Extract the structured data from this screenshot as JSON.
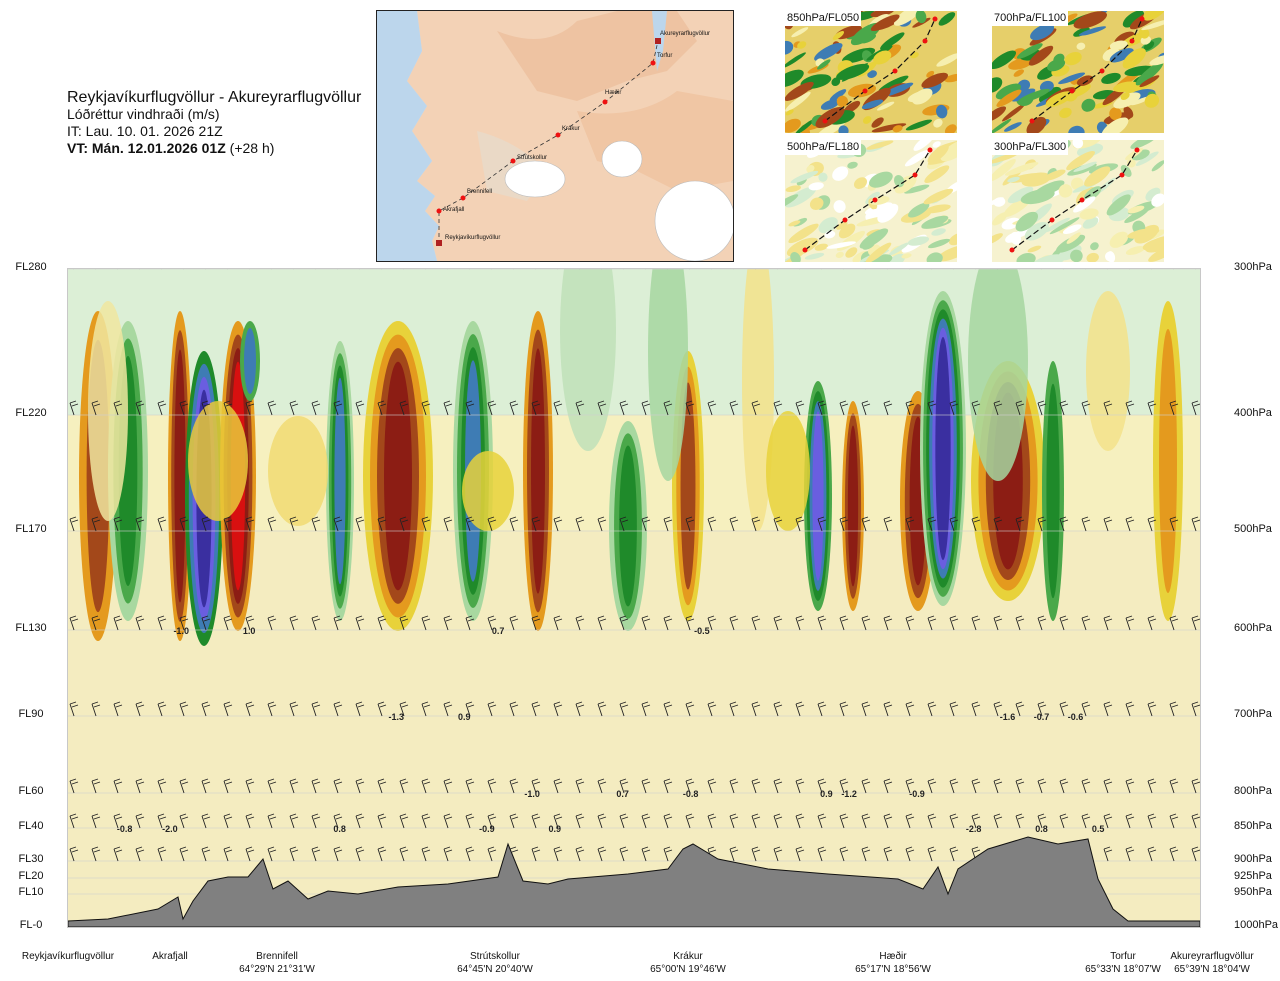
{
  "header": {
    "route": "Reykjavíkurflugvöllur - Akureyrarflugvöllur",
    "variable": "Lóðréttur vindhraði (m/s)",
    "issue_time": "IT: Lau. 10. 01. 2026 21Z",
    "valid_time_bold": "VT: Mán. 12.01.2026 01Z",
    "valid_time_offset": "(+28 h)"
  },
  "route_map": {
    "waypoints": [
      {
        "name": "Reykjavíkurflugvöllur"
      },
      {
        "name": "Akrafjall"
      },
      {
        "name": "Brennifell"
      },
      {
        "name": "Strútskollur"
      },
      {
        "name": "Krákur"
      },
      {
        "name": "Hæðir"
      },
      {
        "name": "Torfur"
      },
      {
        "name": "Akureyrarflugvöllur"
      }
    ]
  },
  "thumbnails": [
    {
      "label": "850hPa/FL050"
    },
    {
      "label": "700hPa/FL100"
    },
    {
      "label": "500hPa/FL180"
    },
    {
      "label": "300hPa/FL300"
    }
  ],
  "colors": {
    "strong_up": "#3a2fa0",
    "up": "#6a5ee0",
    "mid_blue": "#3e7cb4",
    "green_dark": "#1f8a2a",
    "green": "#4aa84a",
    "green_light": "#a8d8a0",
    "green_pale": "#d4ecd0",
    "yellow_pale": "#f6efb0",
    "yellow": "#e8d23a",
    "orange": "#e49a1e",
    "brown": "#a3481a",
    "dark_red": "#8c1d14",
    "red": "#d81010",
    "terrain": "#808080"
  },
  "chart_data": {
    "type": "heatmap",
    "title": "Lóðréttur vindhraði (m/s)",
    "xlabel": "",
    "ylabel": "",
    "y_flight_levels": [
      "FL280",
      "FL220",
      "FL170",
      "FL130",
      "FL90",
      "FL60",
      "FL40",
      "FL30",
      "FL20",
      "FL10",
      "FL-0"
    ],
    "y_pressure_levels": [
      "300hPa",
      "400hPa",
      "500hPa",
      "600hPa",
      "700hPa",
      "800hPa",
      "850hPa",
      "900hPa",
      "925hPa",
      "950hPa",
      "1000hPa"
    ],
    "x_locations": [
      {
        "name": "Reykjavíkurflugvöllur",
        "coord": ""
      },
      {
        "name": "Akrafjall",
        "coord": ""
      },
      {
        "name": "Brennifell",
        "coord": "64°29'N 21°31'W"
      },
      {
        "name": "Strútskollur",
        "coord": "64°45'N 20°40'W"
      },
      {
        "name": "Krákur",
        "coord": "65°00'N 19°46'W"
      },
      {
        "name": "Hæðir",
        "coord": "65°17'N 18°56'W"
      },
      {
        "name": "Torfur",
        "coord": "65°33'N 18°07'W"
      },
      {
        "name": "Akureyrarflugvöllur",
        "coord": "65°39'N 18°04'W"
      }
    ],
    "value_labels": [
      {
        "text": "-1.0",
        "x": 0.1,
        "level": "600hPa"
      },
      {
        "text": "1.0",
        "x": 0.16,
        "level": "600hPa"
      },
      {
        "text": "0.7",
        "x": 0.38,
        "level": "600hPa"
      },
      {
        "text": "-0.5",
        "x": 0.56,
        "level": "600hPa"
      },
      {
        "text": "-1.3",
        "x": 0.29,
        "level": "700hPa"
      },
      {
        "text": "0.9",
        "x": 0.35,
        "level": "700hPa"
      },
      {
        "text": "-1.6",
        "x": 0.83,
        "level": "700hPa"
      },
      {
        "text": "-0.7",
        "x": 0.86,
        "level": "700hPa"
      },
      {
        "text": "-0.6",
        "x": 0.89,
        "level": "700hPa"
      },
      {
        "text": "-1.0",
        "x": 0.41,
        "level": "800hPa"
      },
      {
        "text": "0.7",
        "x": 0.49,
        "level": "800hPa"
      },
      {
        "text": "-0.8",
        "x": 0.55,
        "level": "800hPa"
      },
      {
        "text": "0.9",
        "x": 0.67,
        "level": "800hPa"
      },
      {
        "text": "-1.2",
        "x": 0.69,
        "level": "800hPa"
      },
      {
        "text": "-0.9",
        "x": 0.75,
        "level": "800hPa"
      },
      {
        "text": "-0.8",
        "x": 0.05,
        "level": "850hPa"
      },
      {
        "text": "-2.0",
        "x": 0.09,
        "level": "850hPa"
      },
      {
        "text": "0.8",
        "x": 0.24,
        "level": "850hPa"
      },
      {
        "text": "-0.9",
        "x": 0.37,
        "level": "850hPa"
      },
      {
        "text": "0.9",
        "x": 0.43,
        "level": "850hPa"
      },
      {
        "text": "-2.8",
        "x": 0.8,
        "level": "850hPa"
      },
      {
        "text": "0.8",
        "x": 0.86,
        "level": "850hPa"
      },
      {
        "text": "0.5",
        "x": 0.91,
        "level": "850hPa"
      }
    ]
  }
}
